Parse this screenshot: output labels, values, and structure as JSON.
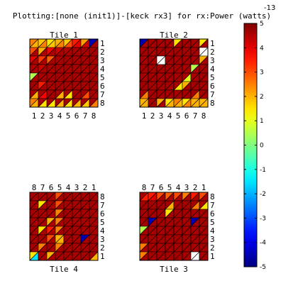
{
  "chart_data": {
    "type": "heatmap",
    "title": "Plotting:[none (init1)]-[keck rx3] for rx:Power (watts)",
    "colorbar": {
      "exponent": "-13",
      "min": -5,
      "max": 5,
      "ticks": [
        "5",
        "4",
        "3",
        "2",
        "1",
        "0",
        "-1",
        "-2",
        "-3",
        "-4",
        "-5"
      ]
    },
    "grid_size": 8,
    "tiles": [
      {
        "name": "Tile 1",
        "title_position": "top",
        "col_labels": [
          "1",
          "2",
          "3",
          "4",
          "5",
          "6",
          "7",
          "8"
        ],
        "row_labels": [
          "1",
          "2",
          "3",
          "4",
          "5",
          "6",
          "7",
          "8"
        ],
        "upper": [
          [
            2.5,
            1.8,
            1.5,
            2.0,
            1.8,
            3.5,
            2.2,
            -4.5
          ],
          [
            3.0,
            2.0,
            3.8,
            4.2,
            4.5,
            4.6,
            4.6,
            4.6
          ],
          [
            4.0,
            3.2,
            2.8,
            4.5,
            4.6,
            4.6,
            4.6,
            4.6
          ],
          [
            4.5,
            4.3,
            4.6,
            4.6,
            4.6,
            4.6,
            4.6,
            4.6
          ],
          [
            0.5,
            4.6,
            4.6,
            4.6,
            4.6,
            4.6,
            4.6,
            4.6
          ],
          [
            4.6,
            3.5,
            4.6,
            4.6,
            4.6,
            4.6,
            4.6,
            4.6
          ],
          [
            4.6,
            4.6,
            4.6,
            4.6,
            4.6,
            4.6,
            4.6,
            4.6
          ],
          [
            2.5,
            4.6,
            4.6,
            4.6,
            4.6,
            4.6,
            4.6,
            4.6
          ]
        ],
        "lower": [
          [
            2.0,
            2.5,
            1.8,
            2.5,
            3.0,
            4.0,
            4.2,
            4.6
          ],
          [
            4.6,
            4.6,
            4.6,
            4.6,
            4.6,
            4.6,
            4.6,
            4.6
          ],
          [
            4.6,
            4.6,
            4.6,
            4.6,
            4.6,
            4.6,
            4.6,
            4.6
          ],
          [
            4.6,
            4.6,
            4.6,
            4.6,
            4.6,
            4.6,
            4.6,
            4.6
          ],
          [
            4.6,
            4.6,
            4.6,
            4.6,
            4.6,
            4.6,
            4.6,
            4.6
          ],
          [
            4.6,
            4.6,
            4.6,
            4.6,
            4.6,
            4.6,
            4.6,
            4.6
          ],
          [
            2.0,
            3.8,
            4.6,
            2.0,
            1.5,
            4.6,
            3.0,
            4.6
          ],
          [
            2.0,
            1.5,
            1.5,
            2.0,
            1.5,
            2.0,
            1.8,
            2.5
          ]
        ]
      },
      {
        "name": "Tile 2",
        "title_position": "top",
        "col_labels": [
          "1",
          "2",
          "3",
          "4",
          "5",
          "6",
          "7",
          "8"
        ],
        "row_labels": [
          "1",
          "2",
          "3",
          "4",
          "5",
          "6",
          "7",
          "8"
        ],
        "upper": [
          [
            -4.5,
            4.6,
            4.6,
            4.6,
            1.5,
            4.6,
            4.6,
            1.5
          ],
          [
            4.6,
            4.6,
            4.6,
            4.6,
            4.6,
            4.6,
            4.6,
            4.6
          ],
          [
            4.6,
            4.6,
            4.6,
            4.6,
            4.6,
            4.6,
            4.6,
            2.0
          ],
          [
            4.6,
            4.6,
            4.6,
            4.6,
            4.6,
            4.6,
            0.5,
            4.6
          ],
          [
            4.6,
            4.6,
            4.6,
            4.6,
            4.6,
            4.6,
            4.6,
            4.6
          ],
          [
            4.6,
            4.6,
            4.6,
            4.6,
            4.6,
            2.0,
            4.6,
            4.6
          ],
          [
            4.6,
            4.6,
            4.6,
            4.6,
            4.6,
            4.6,
            4.6,
            4.6
          ],
          [
            2.0,
            4.6,
            2.0,
            1.5,
            2.5,
            1.5,
            2.0,
            2.0
          ]
        ],
        "lower": [
          [
            4.6,
            4.6,
            4.6,
            4.6,
            4.6,
            4.6,
            4.6,
            4.6
          ],
          [
            4.6,
            4.6,
            4.6,
            4.6,
            4.6,
            4.6,
            4.6,
            4.6
          ],
          [
            4.6,
            4.6,
            4.6,
            4.6,
            4.6,
            4.6,
            4.6,
            4.6
          ],
          [
            4.6,
            4.6,
            4.6,
            4.6,
            4.6,
            4.6,
            4.6,
            4.6
          ],
          [
            4.6,
            4.6,
            4.6,
            4.6,
            4.6,
            1.0,
            4.6,
            4.6
          ],
          [
            4.6,
            4.6,
            4.6,
            4.6,
            1.5,
            4.6,
            4.6,
            4.6
          ],
          [
            2.5,
            4.6,
            4.6,
            4.6,
            4.6,
            4.6,
            2.5,
            4.6
          ],
          [
            2.0,
            4.6,
            4.6,
            2.0,
            2.0,
            2.5,
            2.0,
            2.0
          ]
        ],
        "white_cells": [
          [
            1,
            7
          ],
          [
            2,
            2
          ]
        ]
      },
      {
        "name": "Tile 4",
        "title_position": "bottom",
        "col_labels": [
          "8",
          "7",
          "6",
          "5",
          "4",
          "3",
          "2",
          "1"
        ],
        "row_labels": [
          "8",
          "7",
          "6",
          "5",
          "4",
          "3",
          "2",
          "1"
        ],
        "upper": [
          [
            4.6,
            4.6,
            4.6,
            3.0,
            4.6,
            4.6,
            4.6,
            4.6
          ],
          [
            4.6,
            1.5,
            4.6,
            3.0,
            4.6,
            4.6,
            4.6,
            4.6
          ],
          [
            4.6,
            4.6,
            4.6,
            2.5,
            4.6,
            4.6,
            4.6,
            4.6
          ],
          [
            4.6,
            4.6,
            2.0,
            2.5,
            4.6,
            4.6,
            4.6,
            4.6
          ],
          [
            4.6,
            1.5,
            3.5,
            2.5,
            4.6,
            4.6,
            4.6,
            4.6
          ],
          [
            4.6,
            4.6,
            3.0,
            2.0,
            4.6,
            4.6,
            -4.5,
            4.6
          ],
          [
            4.6,
            2.5,
            4.6,
            2.5,
            4.6,
            4.6,
            4.6,
            4.6
          ],
          [
            1.5,
            4.6,
            2.0,
            4.6,
            4.6,
            4.6,
            4.6,
            4.6
          ]
        ],
        "lower": [
          [
            4.6,
            4.6,
            4.6,
            4.6,
            4.6,
            4.6,
            4.6,
            4.6
          ],
          [
            4.6,
            4.6,
            4.6,
            4.6,
            4.6,
            4.6,
            4.6,
            4.6
          ],
          [
            4.6,
            4.6,
            4.6,
            4.6,
            4.6,
            4.6,
            4.6,
            4.6
          ],
          [
            4.6,
            4.6,
            4.6,
            4.6,
            4.6,
            4.6,
            4.6,
            4.6
          ],
          [
            4.6,
            4.6,
            4.6,
            4.6,
            4.6,
            4.6,
            4.6,
            4.6
          ],
          [
            4.6,
            4.6,
            4.6,
            2.0,
            4.6,
            4.6,
            4.6,
            4.6
          ],
          [
            4.6,
            4.6,
            4.6,
            4.6,
            4.6,
            4.6,
            4.6,
            4.6
          ],
          [
            -1.5,
            4.6,
            4.6,
            4.6,
            4.6,
            4.6,
            4.6,
            2.0
          ]
        ]
      },
      {
        "name": "Tile 3",
        "title_position": "bottom",
        "col_labels": [
          "8",
          "7",
          "6",
          "5",
          "4",
          "3",
          "2",
          "1"
        ],
        "row_labels": [
          "8",
          "7",
          "6",
          "5",
          "4",
          "3",
          "2",
          "1"
        ],
        "upper": [
          [
            4.6,
            3.5,
            3.0,
            2.8,
            3.0,
            2.5,
            3.5,
            3.0
          ],
          [
            4.6,
            4.6,
            4.6,
            4.6,
            4.6,
            4.6,
            4.6,
            4.6
          ],
          [
            4.6,
            4.6,
            4.6,
            1.5,
            4.6,
            4.6,
            4.6,
            4.6
          ],
          [
            4.6,
            -4.5,
            4.6,
            4.6,
            4.6,
            4.6,
            -4.5,
            4.6
          ],
          [
            0.5,
            4.6,
            4.6,
            4.6,
            4.6,
            4.6,
            4.6,
            4.6
          ],
          [
            4.6,
            4.6,
            4.6,
            4.6,
            4.6,
            4.6,
            4.6,
            4.6
          ],
          [
            2.5,
            4.6,
            4.6,
            4.6,
            4.6,
            4.6,
            4.6,
            4.6
          ],
          [
            2.5,
            4.6,
            4.6,
            4.6,
            4.6,
            4.6,
            4.6,
            4.6
          ]
        ],
        "lower": [
          [
            3.5,
            4.0,
            4.6,
            4.6,
            4.6,
            4.6,
            4.6,
            4.6
          ],
          [
            4.6,
            4.6,
            4.6,
            2.0,
            4.6,
            4.6,
            2.5,
            1.5
          ],
          [
            4.6,
            4.6,
            4.6,
            4.6,
            4.6,
            4.6,
            4.6,
            4.6
          ],
          [
            4.6,
            4.6,
            4.6,
            4.6,
            4.6,
            4.6,
            4.6,
            4.6
          ],
          [
            4.6,
            4.6,
            4.6,
            4.6,
            4.6,
            4.6,
            4.6,
            4.6
          ],
          [
            4.6,
            4.6,
            4.6,
            4.6,
            4.6,
            4.6,
            4.6,
            4.6
          ],
          [
            4.6,
            4.6,
            4.6,
            4.6,
            4.6,
            4.6,
            4.6,
            4.6
          ],
          [
            4.6,
            4.6,
            4.6,
            4.6,
            4.6,
            4.6,
            4.6,
            4.6
          ]
        ],
        "white_cells": [
          [
            7,
            6
          ]
        ]
      }
    ]
  }
}
